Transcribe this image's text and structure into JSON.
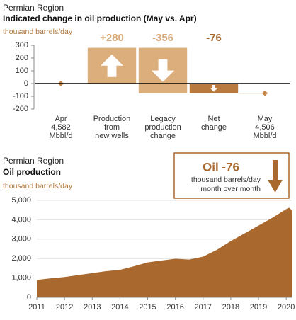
{
  "chart_data": [
    {
      "type": "waterfall",
      "title": "Permian Region",
      "subtitle": "Indicated change in oil production (May vs. Apr)",
      "ylabel": "thousand barrels/day",
      "categories": [
        [
          "Apr",
          "4,582",
          "Mbbl/d"
        ],
        [
          "Production",
          "from",
          "new wells"
        ],
        [
          "Legacy",
          "production",
          "change"
        ],
        [
          "Net",
          "change"
        ],
        [
          "May",
          "4,506",
          "Mbbl/d"
        ]
      ],
      "values": [
        0,
        280,
        -356,
        -76,
        -76
      ],
      "value_labels": [
        null,
        "+280",
        "-356",
        "-76",
        null
      ],
      "colors": [
        "#c8864a",
        "#dcae7c",
        "#dcae7c",
        "#b87a3f",
        "#c8864a"
      ],
      "ylim": [
        -200,
        300
      ],
      "yticks": [
        -200,
        -100,
        0,
        100,
        200,
        300
      ]
    },
    {
      "type": "area",
      "title": "Permian Region",
      "subtitle": "Oil production",
      "ylabel": "thousand barrels/day",
      "color": "#a9682e",
      "grid": true,
      "annotation": [
        "Oil -76",
        "thousand barrels/day",
        "month over month"
      ],
      "x": [
        2011,
        2011.5,
        2012,
        2012.5,
        2013,
        2013.5,
        2014,
        2014.5,
        2015,
        2015.5,
        2016,
        2016.5,
        2017,
        2017.5,
        2018,
        2018.5,
        2019,
        2019.5,
        2020,
        2020.1,
        2020.2
      ],
      "values": [
        900,
        980,
        1050,
        1150,
        1250,
        1350,
        1420,
        1600,
        1800,
        1900,
        1990,
        1950,
        2100,
        2450,
        2900,
        3300,
        3700,
        4100,
        4550,
        4620,
        4500
      ],
      "xlim": [
        2011,
        2020.2
      ],
      "xticks": [
        2011,
        2012,
        2013,
        2014,
        2015,
        2016,
        2017,
        2018,
        2019,
        2020
      ],
      "ylim": [
        0,
        5000
      ],
      "yticks": [
        0,
        {
          "value": 1000,
          "label": "1,000"
        },
        {
          "value": 2000,
          "label": "2,000"
        },
        {
          "value": 3000,
          "label": "3,000"
        },
        {
          "value": 4000,
          "label": "4,000"
        },
        {
          "value": 5000,
          "label": "5,000"
        }
      ]
    }
  ]
}
